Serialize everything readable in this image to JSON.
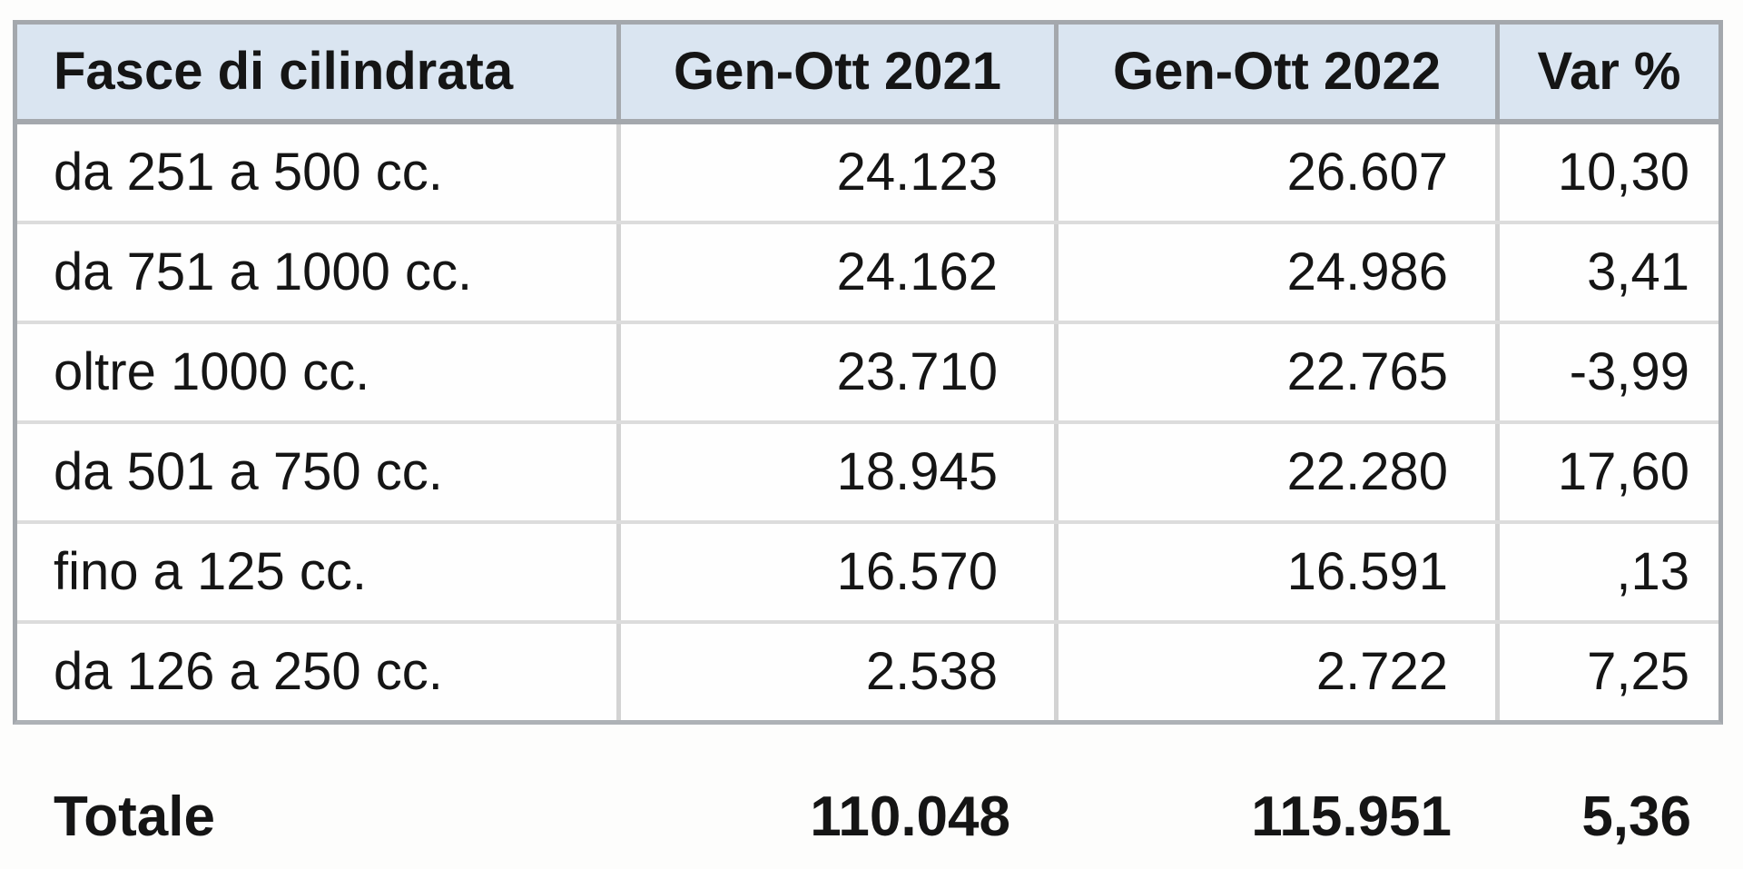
{
  "colors": {
    "header_bg": "#dae5f1",
    "outer_border": "#a4a8ad",
    "row_separator": "#dcdcdc",
    "column_separator": "#d3d3d3",
    "text": "#151515"
  },
  "table": {
    "headers": [
      "Fasce di cilindrata",
      "Gen-Ott 2021",
      "Gen-Ott 2022",
      "Var %"
    ],
    "rows": [
      {
        "fascia": "da 251 a 500 cc.",
        "gen_ott_2021": "24.123",
        "gen_ott_2022": "26.607",
        "var_pct": "10,30"
      },
      {
        "fascia": "da 751 a 1000 cc.",
        "gen_ott_2021": "24.162",
        "gen_ott_2022": "24.986",
        "var_pct": "3,41"
      },
      {
        "fascia": "oltre 1000 cc.",
        "gen_ott_2021": "23.710",
        "gen_ott_2022": "22.765",
        "var_pct": "-3,99"
      },
      {
        "fascia": "da 501 a 750 cc.",
        "gen_ott_2021": "18.945",
        "gen_ott_2022": "22.280",
        "var_pct": "17,60"
      },
      {
        "fascia": "fino a 125 cc.",
        "gen_ott_2021": "16.570",
        "gen_ott_2022": "16.591",
        "var_pct": ",13"
      },
      {
        "fascia": "da 126 a 250 cc.",
        "gen_ott_2021": "2.538",
        "gen_ott_2022": "2.722",
        "var_pct": "7,25"
      }
    ],
    "total": {
      "label": "Totale",
      "gen_ott_2021": "110.048",
      "gen_ott_2022": "115.951",
      "var_pct": "5,36"
    }
  },
  "chart_data": {
    "type": "table",
    "columns": [
      "Fasce di cilindrata",
      "Gen-Ott 2021",
      "Gen-Ott 2022",
      "Var %"
    ],
    "rows": [
      [
        "da 251 a 500 cc.",
        24123,
        26607,
        10.3
      ],
      [
        "da 751 a 1000 cc.",
        24162,
        24986,
        3.41
      ],
      [
        "oltre 1000 cc.",
        23710,
        22765,
        -3.99
      ],
      [
        "da 501 a 750 cc.",
        18945,
        22280,
        17.6
      ],
      [
        "fino a 125 cc.",
        16570,
        16591,
        0.13
      ],
      [
        "da 126 a 250 cc.",
        2538,
        2722,
        7.25
      ]
    ],
    "total_row": [
      "Totale",
      110048,
      115951,
      5.36
    ],
    "number_format": "it-IT: '.' thousands separator, ',' decimal separator",
    "layout": "header row light-blue, numeric columns right-aligned, bold total row below grid"
  }
}
